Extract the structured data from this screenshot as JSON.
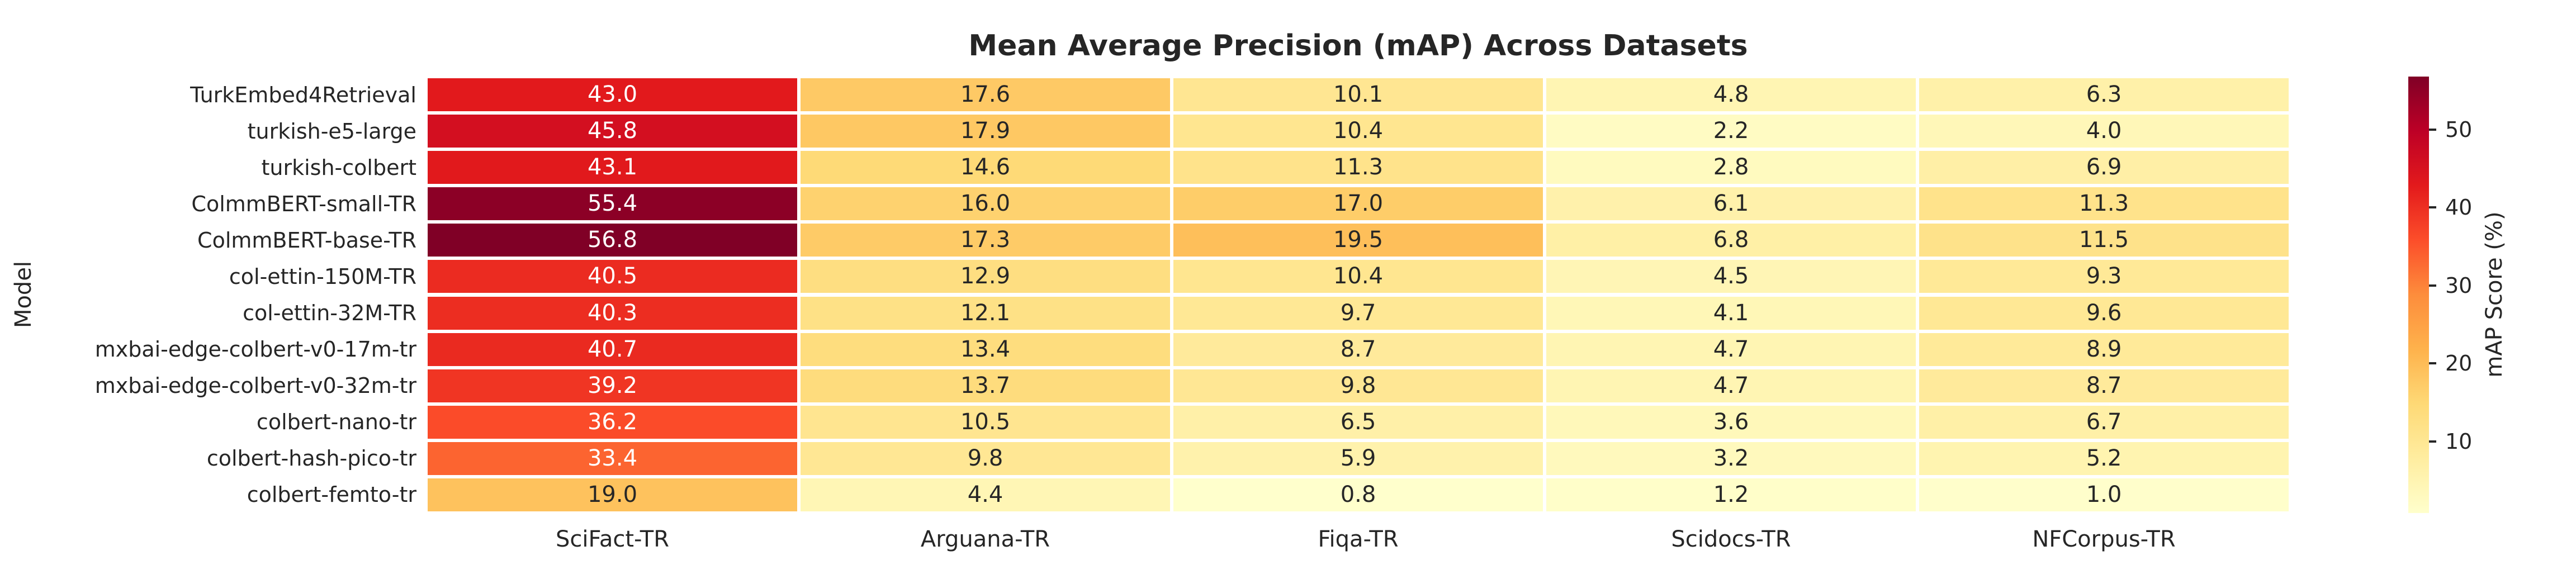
{
  "chart_data": {
    "type": "heatmap",
    "title": "Mean Average Precision (mAP) Across Datasets",
    "ylabel": "Model",
    "xlabel": "",
    "columns": [
      "SciFact-TR",
      "Arguana-TR",
      "Fiqa-TR",
      "Scidocs-TR",
      "NFCorpus-TR"
    ],
    "rows": [
      "TurkEmbed4Retrieval",
      "turkish-e5-large",
      "turkish-colbert",
      "ColmmBERT-small-TR",
      "ColmmBERT-base-TR",
      "col-ettin-150M-TR",
      "col-ettin-32M-TR",
      "mxbai-edge-colbert-v0-17m-tr",
      "mxbai-edge-colbert-v0-32m-tr",
      "colbert-nano-tr",
      "colbert-hash-pico-tr",
      "colbert-femto-tr"
    ],
    "values": [
      [
        43.0,
        17.6,
        10.1,
        4.8,
        6.3
      ],
      [
        45.8,
        17.9,
        10.4,
        2.2,
        4.0
      ],
      [
        43.1,
        14.6,
        11.3,
        2.8,
        6.9
      ],
      [
        55.4,
        16.0,
        17.0,
        6.1,
        11.3
      ],
      [
        56.8,
        17.3,
        19.5,
        6.8,
        11.5
      ],
      [
        40.5,
        12.9,
        10.4,
        4.5,
        9.3
      ],
      [
        40.3,
        12.1,
        9.7,
        4.1,
        9.6
      ],
      [
        40.7,
        13.4,
        8.7,
        4.7,
        8.9
      ],
      [
        39.2,
        13.7,
        9.8,
        4.7,
        8.7
      ],
      [
        36.2,
        10.5,
        6.5,
        3.6,
        6.7
      ],
      [
        33.4,
        9.8,
        5.9,
        3.2,
        5.2
      ],
      [
        19.0,
        4.4,
        0.8,
        1.2,
        1.0
      ]
    ],
    "value_format": "1-decimal",
    "vmin": 0.8,
    "vmax": 56.8,
    "colorbar_label": "mAP Score (%)",
    "colorbar_ticks": [
      10,
      20,
      30,
      40,
      50
    ],
    "colormap": "YlOrRd",
    "grid": false,
    "legend_position": "right-colorbar"
  },
  "colors": {
    "background": "#ffffff",
    "cell_gap": "#ffffff",
    "text": "#262626",
    "annot_on_light": "#262626",
    "annot_on_dark": "#ffffff",
    "colormap_stops": [
      "#ffffcc",
      "#ffeda0",
      "#fed976",
      "#feb24c",
      "#fd8d3c",
      "#fc4e2a",
      "#e31a1c",
      "#bd0026",
      "#800026"
    ]
  }
}
